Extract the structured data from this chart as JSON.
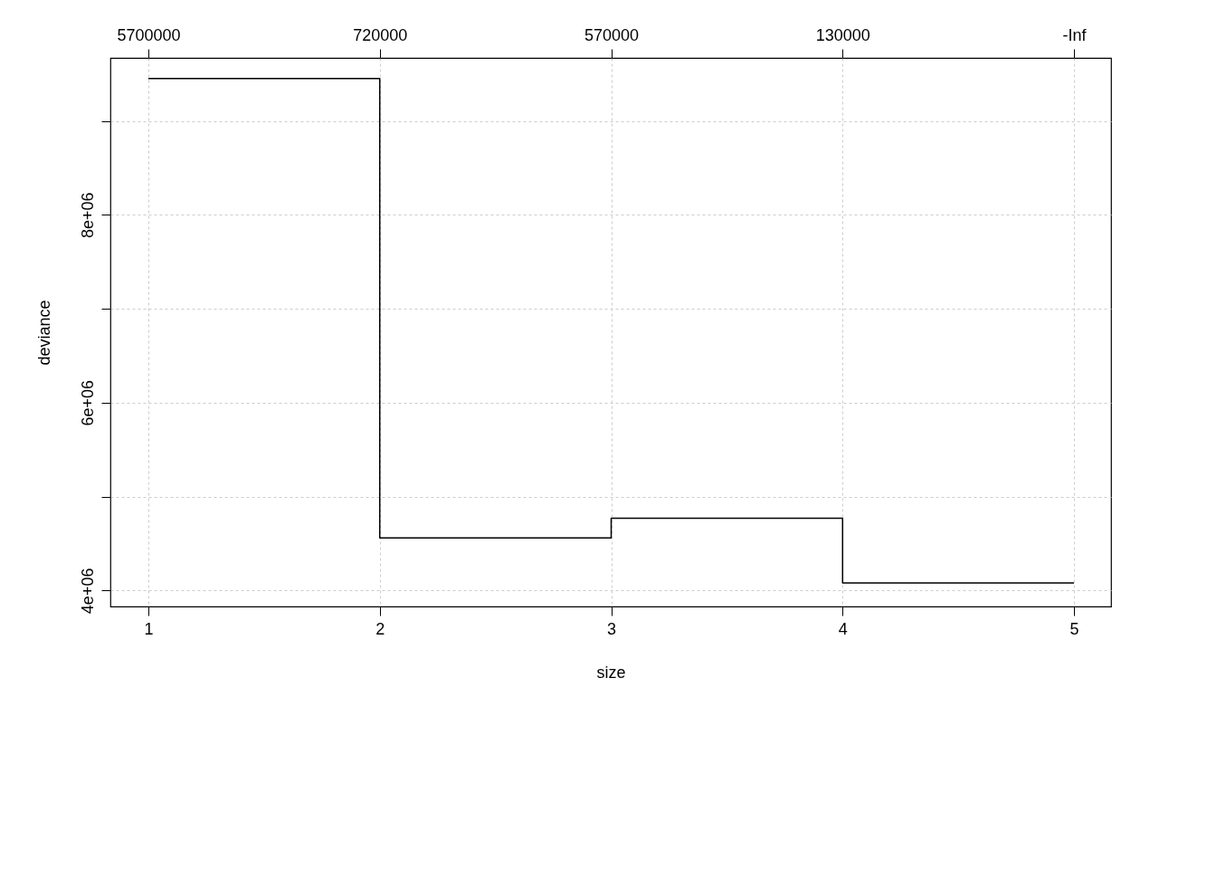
{
  "chart_data": {
    "type": "step",
    "xlabel": "size",
    "ylabel": "deviance",
    "x": [
      1,
      2,
      3,
      4,
      5
    ],
    "series": [
      {
        "color": "#000000",
        "values": [
          9450000,
          4560000,
          4770000,
          4080000,
          4080000
        ]
      }
    ],
    "xlim": [
      0.836,
      5.16
    ],
    "xticks": [
      1,
      2,
      3,
      4,
      5
    ],
    "annotations": [
      "5700000",
      "720000",
      "570000",
      "130000",
      "-Inf"
    ],
    "ylim": [
      3830000,
      9670000
    ],
    "yticks": [
      {
        "value": 4000000,
        "label": "4e+06"
      },
      {
        "value": 5000000,
        "label": null
      },
      {
        "value": 6000000,
        "label": "6e+06"
      },
      {
        "value": 7000000,
        "label": null
      },
      {
        "value": 8000000,
        "label": "8e+06"
      },
      {
        "value": 9000000,
        "label": null
      }
    ],
    "grid": true,
    "line_style": "solid",
    "marker": "none"
  }
}
